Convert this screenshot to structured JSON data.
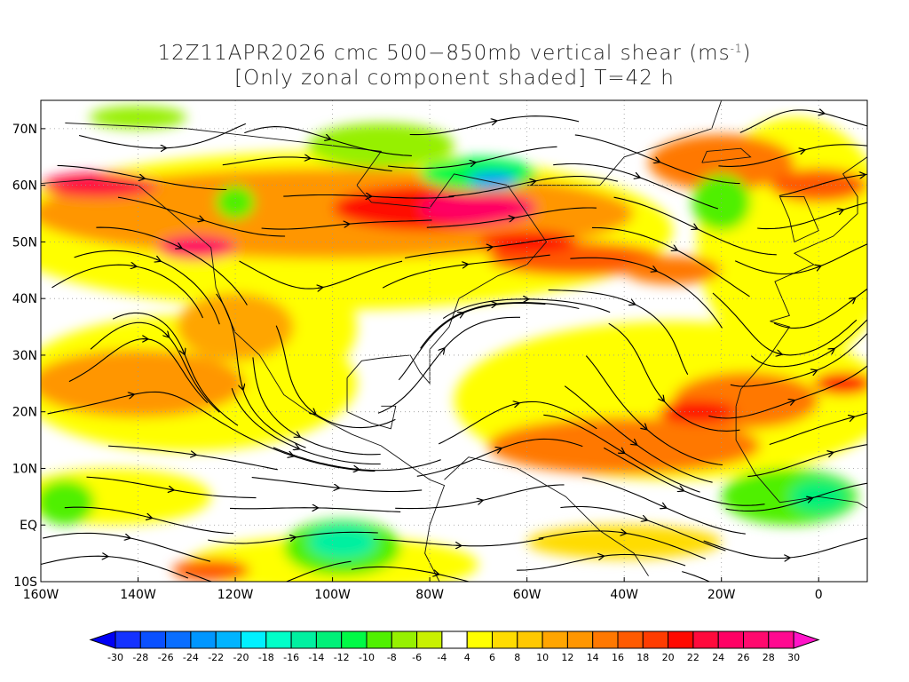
{
  "title": {
    "line1_prefix": "12Z11APR2026 cmc 500−850mb vertical shear (ms",
    "line1_sup": "-1",
    "line1_suffix": ")",
    "line2": "[Only zonal component shaded] T=42 h"
  },
  "map": {
    "lon_range": [
      -160,
      10
    ],
    "lat_range": [
      -10,
      75
    ],
    "lat_labels": [
      {
        "lat": 70,
        "text": "70N"
      },
      {
        "lat": 60,
        "text": "60N"
      },
      {
        "lat": 50,
        "text": "50N"
      },
      {
        "lat": 40,
        "text": "40N"
      },
      {
        "lat": 30,
        "text": "30N"
      },
      {
        "lat": 20,
        "text": "20N"
      },
      {
        "lat": 10,
        "text": "10N"
      },
      {
        "lat": 0,
        "text": "EQ"
      },
      {
        "lat": -10,
        "text": "10S"
      }
    ],
    "lon_labels": [
      {
        "lon": -160,
        "text": "160W"
      },
      {
        "lon": -140,
        "text": "140W"
      },
      {
        "lon": -120,
        "text": "120W"
      },
      {
        "lon": -100,
        "text": "100W"
      },
      {
        "lon": -80,
        "text": "80W"
      },
      {
        "lon": -60,
        "text": "60W"
      },
      {
        "lon": -40,
        "text": "40W"
      },
      {
        "lon": -20,
        "text": "20W"
      },
      {
        "lon": 0,
        "text": "0"
      }
    ]
  },
  "colorbar": {
    "labels": [
      "-30",
      "-28",
      "-26",
      "-24",
      "-22",
      "-20",
      "-18",
      "-16",
      "-14",
      "-12",
      "-10",
      "-8",
      "-6",
      "-4",
      "4",
      "6",
      "8",
      "10",
      "12",
      "14",
      "16",
      "18",
      "20",
      "22",
      "24",
      "26",
      "28",
      "30"
    ],
    "low_arrow_color": "#0000f5",
    "high_arrow_color": "#ff14c8",
    "colors": [
      "#1432ff",
      "#0a50ff",
      "#0a6eff",
      "#0096ff",
      "#00b4ff",
      "#00f0ff",
      "#00ffc8",
      "#00f0a0",
      "#00f078",
      "#00fa46",
      "#50f000",
      "#96f000",
      "#c8f000",
      "#ffffff",
      "#ffff00",
      "#ffdc00",
      "#ffc800",
      "#ffa500",
      "#ff9600",
      "#ff7800",
      "#ff5a00",
      "#ff3c00",
      "#ff0a00",
      "#ff0a3c",
      "#ff0064",
      "#ff0a6e",
      "#ff0a90"
    ]
  }
}
